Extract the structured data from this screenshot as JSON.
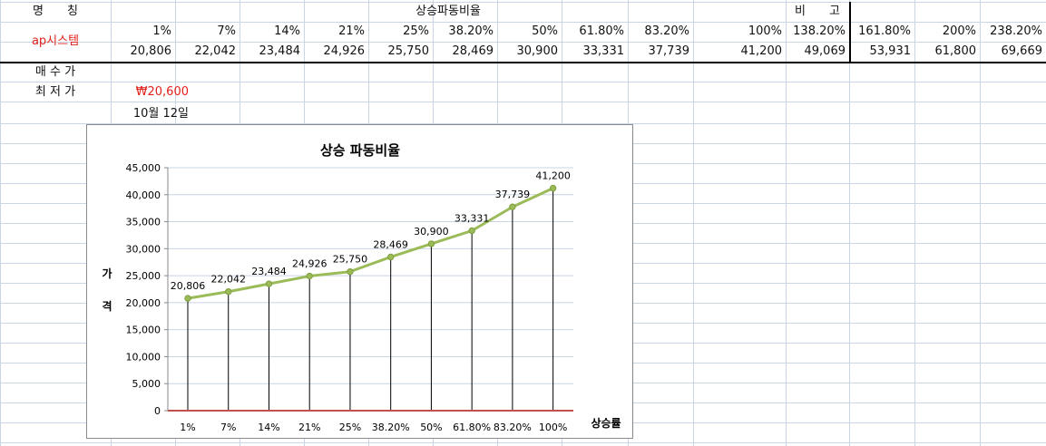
{
  "sheet": {
    "header": {
      "name_label": "명　　칭",
      "ratio_group_label": "상승파동비율",
      "note_label": "비　　고",
      "percents": [
        "1%",
        "7%",
        "14%",
        "21%",
        "25%",
        "38.20%",
        "50%",
        "61.80%",
        "83.20%",
        "100%",
        "138.20%",
        "161.80%",
        "200%",
        "238.20%"
      ]
    },
    "row": {
      "name": "ap시스템",
      "values": [
        "20,806",
        "22,042",
        "23,484",
        "24,926",
        "25,750",
        "28,469",
        "30,900",
        "33,331",
        "37,739",
        "41,200",
        "49,069",
        "53,931",
        "61,800",
        "69,669"
      ]
    },
    "buy_label": "매 수 가",
    "low_label": "최 저 가",
    "low_value": "₩20,600",
    "date_value": "10월 12일"
  },
  "colors": {
    "line": "#9bbb59",
    "baseline": "#c0504d",
    "red_text": "#e0201a",
    "gridline": "#c9d4e4"
  },
  "chart_data": {
    "type": "line",
    "title": "상승 파동비율",
    "xlabel": "상승률",
    "ylabel": "가격",
    "categories": [
      "1%",
      "7%",
      "14%",
      "21%",
      "25%",
      "38.20%",
      "50%",
      "61.80%",
      "83.20%",
      "100%"
    ],
    "series": [
      {
        "values": [
          20806,
          22042,
          23484,
          24926,
          25750,
          28469,
          30900,
          33331,
          37739,
          41200
        ]
      }
    ],
    "data_labels": [
      "20,806",
      "22,042",
      "23,484",
      "24,926",
      "25,750",
      "28,469",
      "30,900",
      "33,331",
      "37,739",
      "41,200"
    ],
    "ylim": [
      0,
      45000
    ],
    "yticks": [
      0,
      5000,
      10000,
      15000,
      20000,
      25000,
      30000,
      35000,
      40000,
      45000
    ],
    "ytick_labels": [
      "0",
      "5,000",
      "10,000",
      "15,000",
      "20,000",
      "25,000",
      "30,000",
      "35,000",
      "40,000",
      "45,000"
    ],
    "drop_lines": true,
    "grid": true
  }
}
